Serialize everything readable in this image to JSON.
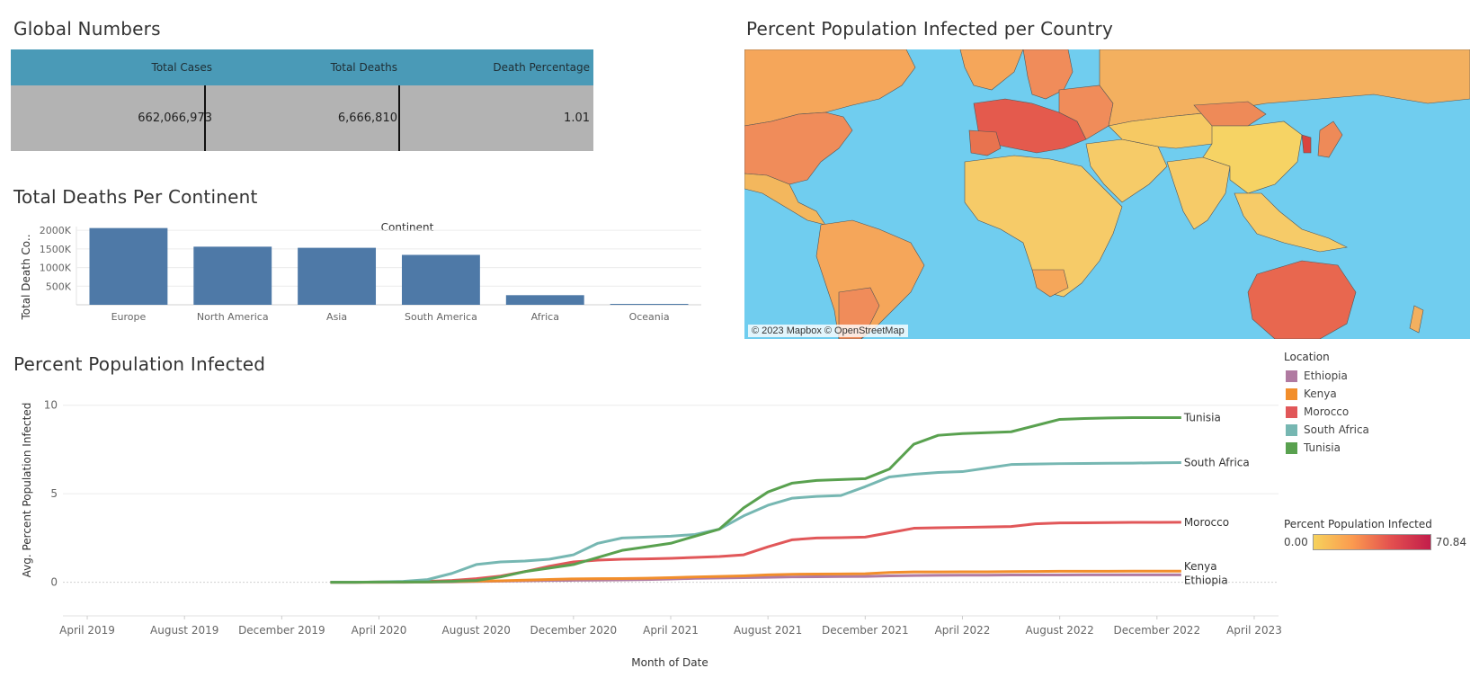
{
  "global_numbers": {
    "title": "Global Numbers",
    "headers": [
      "Total Cases",
      "Total Deaths",
      "Death Percentage"
    ],
    "values": [
      "662,066,973",
      "6,666,810",
      "1.01"
    ],
    "header_color": "#4a9ab7",
    "body_color": "#b3b3b3"
  },
  "map": {
    "title": "Percent Population  Infected per Country",
    "attribution": "© 2023 Mapbox © OpenStreetMap",
    "ocean_color": "#70cdef"
  },
  "legend_location": {
    "title": "Location",
    "items": [
      {
        "label": "Ethiopia",
        "color": "#b07aa1"
      },
      {
        "label": "Kenya",
        "color": "#f28e2b"
      },
      {
        "label": "Morocco",
        "color": "#e15759"
      },
      {
        "label": "South Africa",
        "color": "#76b7b2"
      },
      {
        "label": "Tunisia",
        "color": "#59a14f"
      }
    ]
  },
  "legend_gradient": {
    "title": "Percent Population Infected",
    "min_label": "0.00",
    "max_label": "70.84",
    "colors": [
      "#f6d25c",
      "#fb9a4f",
      "#e34f4f",
      "#c21d4b"
    ]
  },
  "chart_data": [
    {
      "type": "bar",
      "title": "Total Deaths Per Continent",
      "header": "Continent",
      "ylabel": "Total Death Co..",
      "xlabel": "",
      "categories": [
        "Europe",
        "North America",
        "Asia",
        "South America",
        "Africa",
        "Oceania"
      ],
      "values": [
        2060000,
        1560000,
        1530000,
        1340000,
        258000,
        24000
      ],
      "ylim": [
        0,
        2100000
      ],
      "yticks": [
        500000,
        1000000,
        1500000,
        2000000
      ],
      "ytick_labels": [
        "500K",
        "1000K",
        "1500K",
        "2000K"
      ],
      "bar_color": "#4e79a7",
      "grid": true
    },
    {
      "type": "line",
      "title": "Percent Population Infected",
      "xlabel": "Month of Date",
      "ylabel": "Avg. Percent Population Infected",
      "x_tick_labels": [
        "April 2019",
        "August 2019",
        "December 2019",
        "April 2020",
        "August 2020",
        "December 2020",
        "April 2021",
        "August 2021",
        "December 2021",
        "April 2022",
        "August 2022",
        "December 2022",
        "April 2023"
      ],
      "yticks": [
        0,
        5,
        10
      ],
      "ylim": [
        -1.9,
        10.9
      ],
      "grid": true,
      "x": [
        "2020-02",
        "2020-03",
        "2020-04",
        "2020-05",
        "2020-06",
        "2020-07",
        "2020-08",
        "2020-09",
        "2020-10",
        "2020-11",
        "2020-12",
        "2021-01",
        "2021-02",
        "2021-03",
        "2021-04",
        "2021-05",
        "2021-06",
        "2021-07",
        "2021-08",
        "2021-09",
        "2021-10",
        "2021-11",
        "2021-12",
        "2022-01",
        "2022-02",
        "2022-03",
        "2022-04",
        "2022-05",
        "2022-06",
        "2022-07",
        "2022-08",
        "2022-09",
        "2022-10",
        "2022-11",
        "2022-12",
        "2023-01"
      ],
      "series": [
        {
          "name": "Tunisia",
          "color": "#59a14f",
          "values": [
            0.0,
            0.0,
            0.01,
            0.01,
            0.02,
            0.05,
            0.1,
            0.3,
            0.6,
            0.8,
            1.0,
            1.4,
            1.8,
            2.0,
            2.2,
            2.6,
            3.0,
            4.2,
            5.1,
            5.6,
            5.75,
            5.8,
            5.85,
            6.4,
            7.8,
            8.3,
            8.4,
            8.45,
            8.5,
            8.85,
            9.2,
            9.25,
            9.28,
            9.3,
            9.3,
            9.3
          ]
        },
        {
          "name": "South Africa",
          "color": "#76b7b2",
          "values": [
            0.0,
            0.0,
            0.02,
            0.05,
            0.15,
            0.5,
            1.0,
            1.15,
            1.2,
            1.3,
            1.55,
            2.2,
            2.5,
            2.55,
            2.6,
            2.7,
            3.0,
            3.75,
            4.35,
            4.75,
            4.85,
            4.9,
            5.4,
            5.95,
            6.1,
            6.2,
            6.25,
            6.45,
            6.65,
            6.68,
            6.7,
            6.71,
            6.72,
            6.73,
            6.75,
            6.76
          ]
        },
        {
          "name": "Morocco",
          "color": "#e15759",
          "values": [
            0.0,
            0.0,
            0.01,
            0.02,
            0.05,
            0.1,
            0.2,
            0.35,
            0.6,
            0.9,
            1.15,
            1.25,
            1.3,
            1.32,
            1.35,
            1.4,
            1.45,
            1.55,
            2.0,
            2.4,
            2.5,
            2.52,
            2.55,
            2.8,
            3.05,
            3.08,
            3.1,
            3.12,
            3.15,
            3.3,
            3.35,
            3.36,
            3.37,
            3.38,
            3.38,
            3.39
          ]
        },
        {
          "name": "Kenya",
          "color": "#f28e2b",
          "values": [
            0.0,
            0.0,
            0.0,
            0.01,
            0.02,
            0.04,
            0.06,
            0.08,
            0.12,
            0.16,
            0.19,
            0.2,
            0.21,
            0.23,
            0.26,
            0.3,
            0.33,
            0.36,
            0.42,
            0.45,
            0.46,
            0.47,
            0.48,
            0.55,
            0.58,
            0.58,
            0.59,
            0.59,
            0.6,
            0.61,
            0.62,
            0.62,
            0.62,
            0.63,
            0.63,
            0.63
          ]
        },
        {
          "name": "Ethiopia",
          "color": "#b07aa1",
          "values": [
            0.0,
            0.0,
            0.0,
            0.0,
            0.01,
            0.02,
            0.04,
            0.06,
            0.08,
            0.1,
            0.11,
            0.12,
            0.13,
            0.15,
            0.18,
            0.22,
            0.24,
            0.26,
            0.28,
            0.3,
            0.31,
            0.32,
            0.33,
            0.36,
            0.38,
            0.39,
            0.4,
            0.4,
            0.41,
            0.41,
            0.41,
            0.42,
            0.42,
            0.42,
            0.42,
            0.42
          ]
        }
      ]
    }
  ]
}
